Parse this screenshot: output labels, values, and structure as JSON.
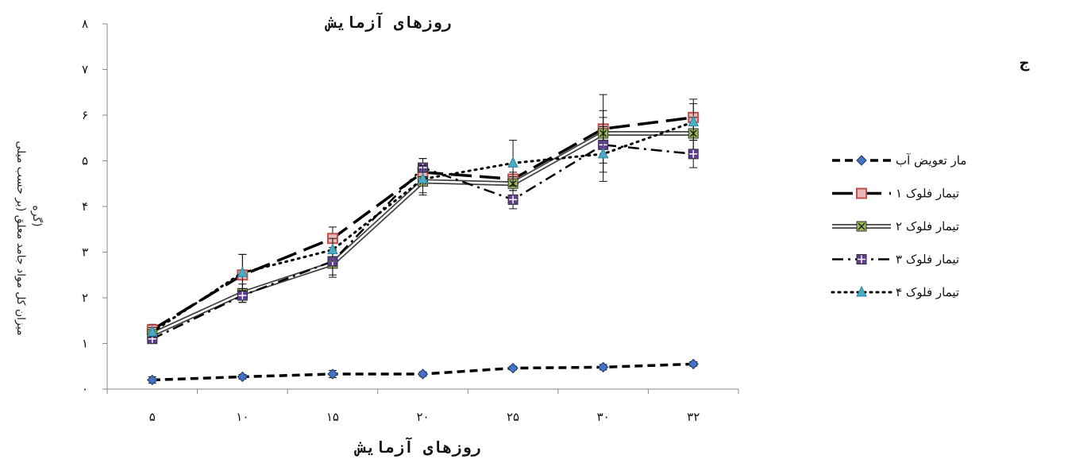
{
  "chart_data": {
    "type": "line",
    "title": "روزهای آزمایش",
    "xlabel": "روزهای آزمایش",
    "ylabel_line1": "میزان کل مواد جامد معلق (بر حسب میلی",
    "ylabel_line2": "گره)",
    "panel_label": "ج",
    "categories": [
      "۵",
      "۱۰",
      "۱۵",
      "۲۰",
      "۲۵",
      "۳۰",
      "۳۲"
    ],
    "y_ticks": [
      "۰",
      "۱",
      "۲",
      "۳",
      "۴",
      "۵",
      "۶",
      "۷",
      "۸"
    ],
    "ylim": [
      0,
      8
    ],
    "grid": false,
    "legend_position": "right",
    "series": [
      {
        "name": "مار تعویض آب",
        "values": [
          0.2,
          0.27,
          0.33,
          0.33,
          0.46,
          0.48,
          0.55
        ],
        "errors": [
          0.07,
          0.05,
          0.08,
          0.05,
          0.04,
          0.06,
          0.05
        ],
        "color": "#2f5597",
        "marker": "diamond",
        "marker_fill": "#4472c4"
      },
      {
        "name": "تیمار فلوک ۱",
        "values": [
          1.3,
          2.5,
          3.3,
          4.75,
          4.6,
          5.7,
          5.95
        ],
        "errors": [
          0.12,
          0.45,
          0.25,
          0.3,
          0.15,
          0.75,
          0.4
        ],
        "color": "#c0504d",
        "marker": "square",
        "marker_fill": "#c0504d"
      },
      {
        "name": "تیمار فلوک ۲",
        "values": [
          1.2,
          2.1,
          2.75,
          4.55,
          4.5,
          5.6,
          5.6
        ],
        "errors": [
          0.08,
          0.2,
          0.3,
          0.3,
          0.15,
          0.5,
          0.35
        ],
        "color": "#9bbb59",
        "marker": "square-x",
        "marker_fill": "#9bbb59"
      },
      {
        "name": "تیمار فلوک ۳",
        "values": [
          1.1,
          2.05,
          2.8,
          4.85,
          4.15,
          5.35,
          5.15
        ],
        "errors": [
          0.1,
          0.15,
          0.3,
          0.2,
          0.2,
          0.6,
          0.3
        ],
        "color": "#5f3c92",
        "marker": "square-plus",
        "marker_fill": "#5f3c92"
      },
      {
        "name": "تیمار فلوک ۴",
        "values": [
          1.25,
          2.55,
          3.05,
          4.6,
          4.95,
          5.15,
          5.85
        ],
        "errors": [
          0.1,
          0.4,
          0.25,
          0.3,
          0.5,
          0.6,
          0.4
        ],
        "color": "#4bacc6",
        "marker": "triangle",
        "marker_fill": "#4bacc6"
      }
    ]
  }
}
